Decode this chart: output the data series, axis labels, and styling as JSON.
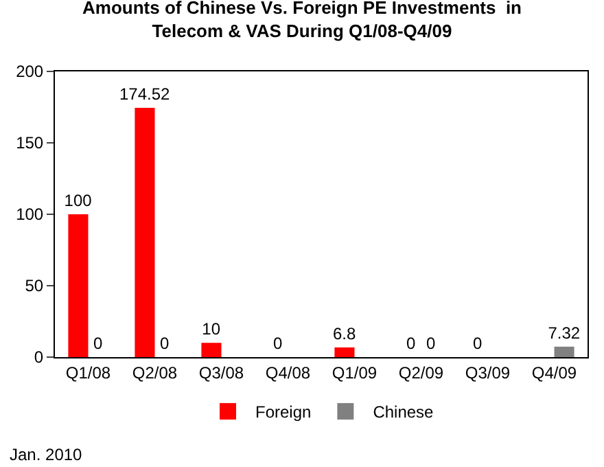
{
  "chart_data": {
    "type": "bar",
    "title": "Amounts of Chinese Vs. Foreign PE Investments  in\nTelecom & VAS During Q1/08-Q4/09",
    "categories": [
      "Q1/08",
      "Q2/08",
      "Q3/08",
      "Q4/08",
      "Q1/09",
      "Q2/09",
      "Q3/09",
      "Q4/09"
    ],
    "series": [
      {
        "name": "Foreign",
        "color": "#ff0000",
        "values": [
          100,
          174.52,
          10,
          0,
          6.8,
          0,
          0,
          null
        ],
        "value_labels": [
          "100",
          "174.52",
          "10",
          "0",
          "6.8",
          "0",
          "0",
          null
        ]
      },
      {
        "name": "Chinese",
        "color": "#808080",
        "values": [
          0,
          0,
          null,
          null,
          null,
          0,
          null,
          7.32
        ],
        "value_labels": [
          "0",
          "0",
          null,
          null,
          null,
          "0",
          null,
          "7.32"
        ]
      }
    ],
    "ylim": [
      0,
      200
    ],
    "yticks": [
      0,
      50,
      100,
      150,
      200
    ],
    "grid": false,
    "legend": "bottom",
    "annotations": [
      "Jan. 2010"
    ]
  }
}
